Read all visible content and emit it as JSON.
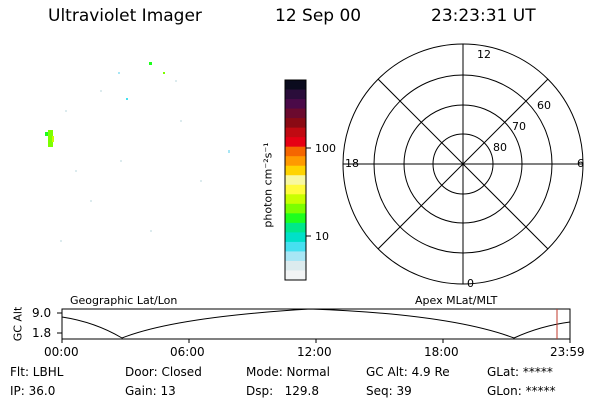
{
  "header": {
    "instrument": "Ultraviolet Imager",
    "date": "12 Sep 00",
    "time": "23:23:31 UT"
  },
  "colorbar": {
    "label": "photon cm⁻²s⁻¹",
    "ticks": [
      "100",
      "10"
    ],
    "colors": [
      "#0b0b1e",
      "#2a0d3a",
      "#4a0a48",
      "#6b0a2e",
      "#8a0a14",
      "#c00a12",
      "#e60014",
      "#f56600",
      "#ff9a00",
      "#ffd400",
      "#f8f8a0",
      "#fffb3c",
      "#c8ff00",
      "#7cff00",
      "#1eff1e",
      "#00e88a",
      "#00e0c8",
      "#46e0f0",
      "#a8e6f5",
      "#dcebee",
      "#f2f4f5"
    ]
  },
  "polar_plot": {
    "mlt_labels": {
      "top": "12",
      "left": "18",
      "right": "6",
      "bottom": "0"
    },
    "lat_labels": [
      "60",
      "70",
      "80"
    ]
  },
  "orbit_panel": {
    "left_label": "Geographic Lat/Lon",
    "right_label": "Apex MLat/MLT",
    "axis_title": "GC Alt",
    "y_ticks": [
      "9.0",
      "1.8"
    ],
    "x_ticks": [
      "00:00",
      "06:00",
      "12:00",
      "18:00",
      "23:59"
    ],
    "current_time_color": "#c0392b"
  },
  "footer": {
    "row1": [
      "Flt: LBHL",
      "Door: Closed",
      "Mode: Normal",
      "GC Alt: 4.9 Re",
      "GLat: *****"
    ],
    "row2": [
      "IP: 36.0",
      "Gain: 13",
      "Dsp:   129.8",
      "Seq: 39",
      "GLon: *****"
    ]
  }
}
